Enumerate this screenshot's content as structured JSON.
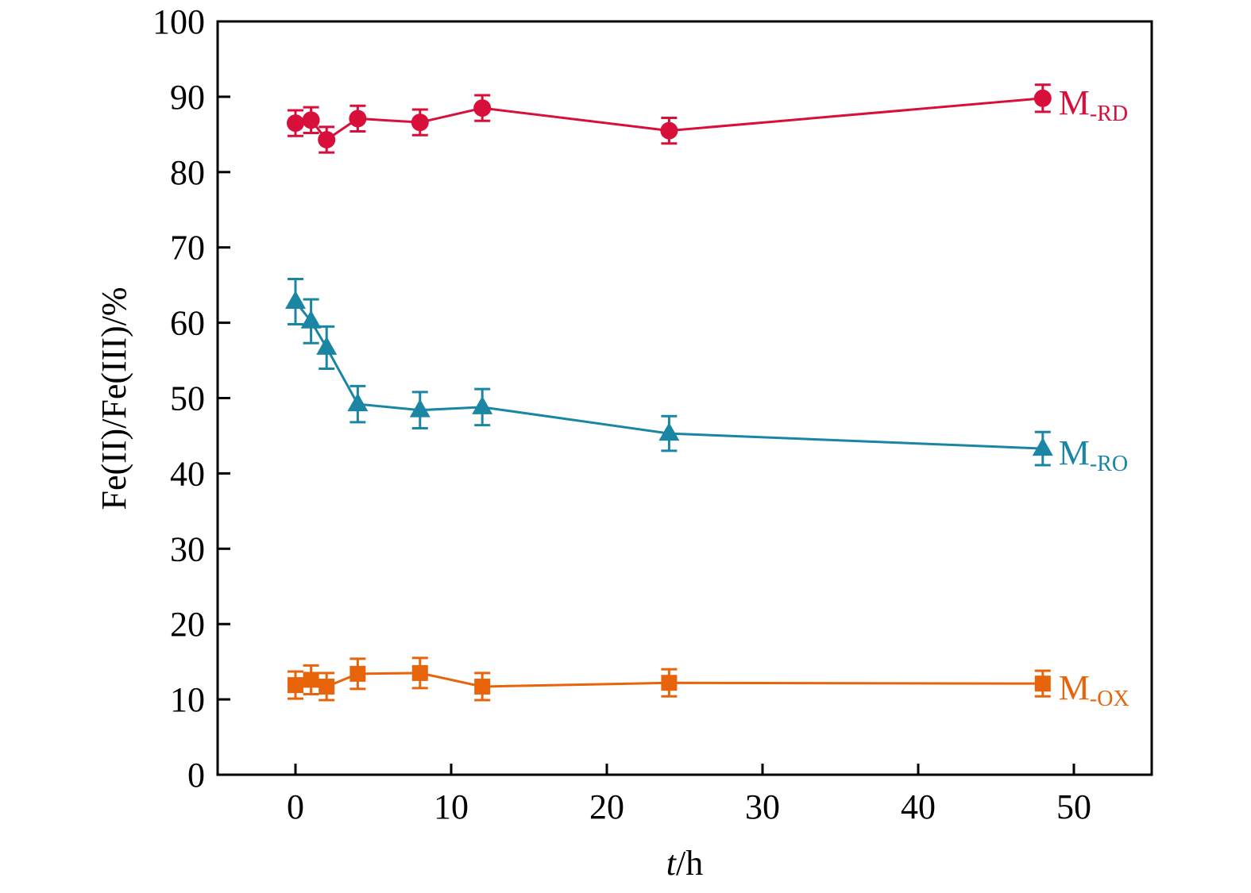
{
  "chart_data": {
    "type": "line",
    "title": "",
    "xlabel_italic": "t",
    "xlabel_rest": "/h",
    "ylabel": "Fe(II)/Fe(III)/%",
    "xlim": [
      -5,
      55
    ],
    "ylim": [
      0,
      100
    ],
    "xticks": [
      0,
      10,
      20,
      30,
      40,
      50
    ],
    "yticks": [
      0,
      10,
      20,
      30,
      40,
      50,
      60,
      70,
      80,
      90,
      100
    ],
    "grid": false,
    "legend": "inline-right",
    "x": [
      0,
      1,
      2,
      4,
      8,
      12,
      24,
      48
    ],
    "series": [
      {
        "name": "M-RD",
        "label_main": "M",
        "label_sub": "-RD",
        "marker": "circle",
        "color": "#d80f3a",
        "values": [
          86.5,
          86.9,
          84.3,
          87.1,
          86.6,
          88.5,
          85.5,
          89.8
        ],
        "errors": [
          1.7,
          1.7,
          1.7,
          1.7,
          1.7,
          1.7,
          1.7,
          1.8
        ]
      },
      {
        "name": "M-RO",
        "label_main": "M",
        "label_sub": "-RO",
        "marker": "triangle",
        "color": "#1a86a4",
        "values": [
          62.8,
          60.2,
          56.7,
          49.2,
          48.4,
          48.8,
          45.3,
          43.3
        ],
        "errors": [
          3.0,
          2.9,
          2.8,
          2.4,
          2.4,
          2.4,
          2.3,
          2.2
        ]
      },
      {
        "name": "M-OX",
        "label_main": "M",
        "label_sub": "-OX",
        "marker": "square",
        "color": "#e8640a",
        "values": [
          11.9,
          12.6,
          11.7,
          13.4,
          13.5,
          11.7,
          12.2,
          12.1
        ],
        "errors": [
          1.8,
          1.9,
          1.8,
          2.0,
          2.0,
          1.8,
          1.8,
          1.7
        ]
      }
    ]
  }
}
